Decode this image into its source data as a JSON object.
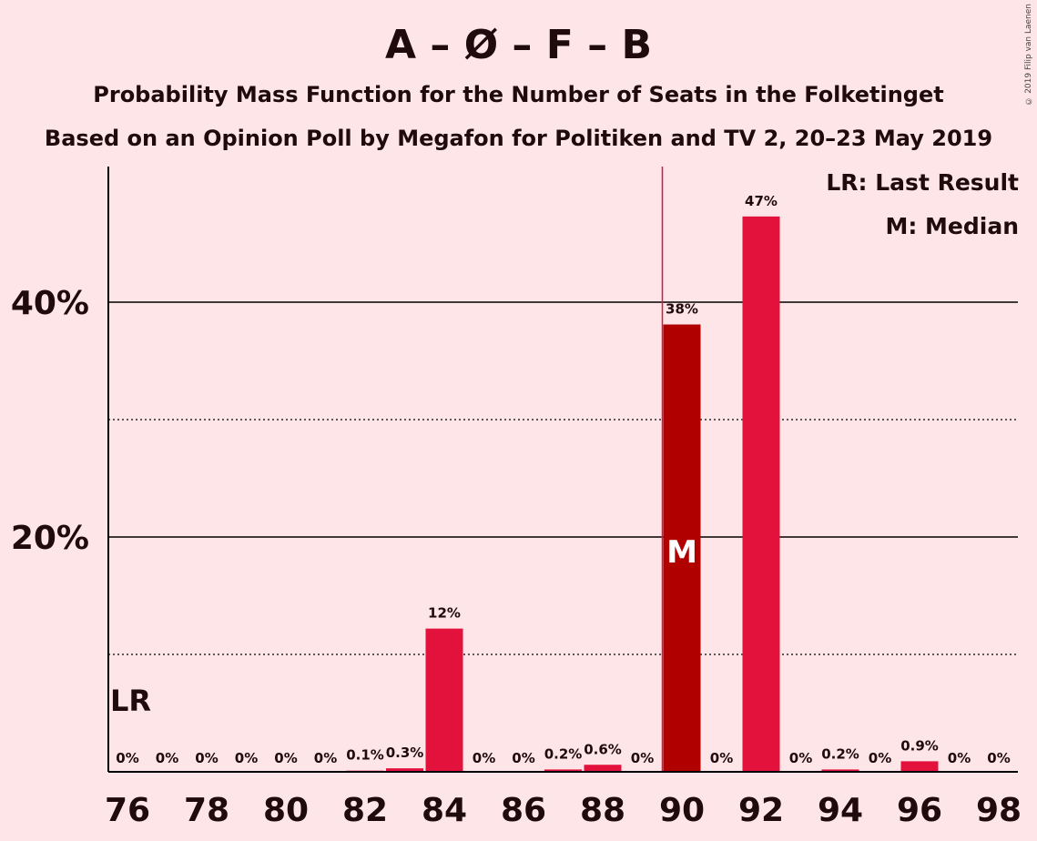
{
  "title": "A – Ø – F – B",
  "subtitle_1": "Probability Mass Function for the Number of Seats in the Folketinget",
  "subtitle_2": "Based on an Opinion Poll by Megafon for Politiken and TV 2, 20–23 May 2019",
  "copyright": "© 2019 Filip van Laenen",
  "legend": {
    "last_result": "LR: Last Result",
    "median": "M: Median"
  },
  "colors": {
    "background": "#fde5e8",
    "bar": "#e3123d",
    "median_bar": "#b00000",
    "last_result_line": "#e3123d",
    "text": "#1f0a0e"
  },
  "chart_data": {
    "type": "bar",
    "x": [
      76,
      77,
      78,
      79,
      80,
      81,
      82,
      83,
      84,
      85,
      86,
      87,
      88,
      89,
      90,
      91,
      92,
      93,
      94,
      95,
      96,
      97,
      98
    ],
    "values": [
      0,
      0,
      0,
      0,
      0,
      0,
      0.1,
      0.3,
      12.2,
      0,
      0,
      0.2,
      0.6,
      0,
      38.1,
      0,
      47.3,
      0,
      0.2,
      0,
      0.9,
      0,
      0
    ],
    "data_labels": [
      "0%",
      "0%",
      "0%",
      "0%",
      "0%",
      "0%",
      "0.1%",
      "0.3%",
      "12%",
      "0%",
      "0%",
      "0.2%",
      "0.6%",
      "0%",
      "38%",
      "0%",
      "47%",
      "0%",
      "0.2%",
      "0%",
      "0.9%",
      "0%",
      "0%"
    ],
    "x_tick_labels": [
      "76",
      "78",
      "80",
      "82",
      "84",
      "86",
      "88",
      "90",
      "92",
      "94",
      "96",
      "98"
    ],
    "y_tick_labels": [
      "20%",
      "40%"
    ],
    "y_ticks": [
      20,
      40
    ],
    "y_minor_ticks": [
      10,
      30
    ],
    "ylim": [
      0,
      51.5
    ],
    "median": 90,
    "median_label": "M",
    "last_result": 76,
    "last_result_label": "LR",
    "grid": true
  }
}
